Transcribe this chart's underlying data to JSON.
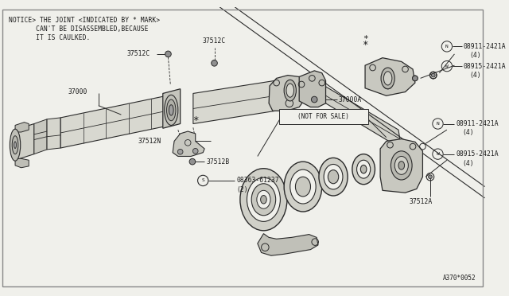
{
  "bg_color": "#f0f0eb",
  "line_color": "#2a2a2a",
  "text_color": "#1a1a1a",
  "figsize": [
    6.4,
    3.72
  ],
  "dpi": 100,
  "notice": [
    "NOTICE> THE JOINT <INDICATED BY * MARK>",
    "       CAN'T BE DISASSEMBLED,BECAUSE",
    "       IT IS CAULKED."
  ]
}
